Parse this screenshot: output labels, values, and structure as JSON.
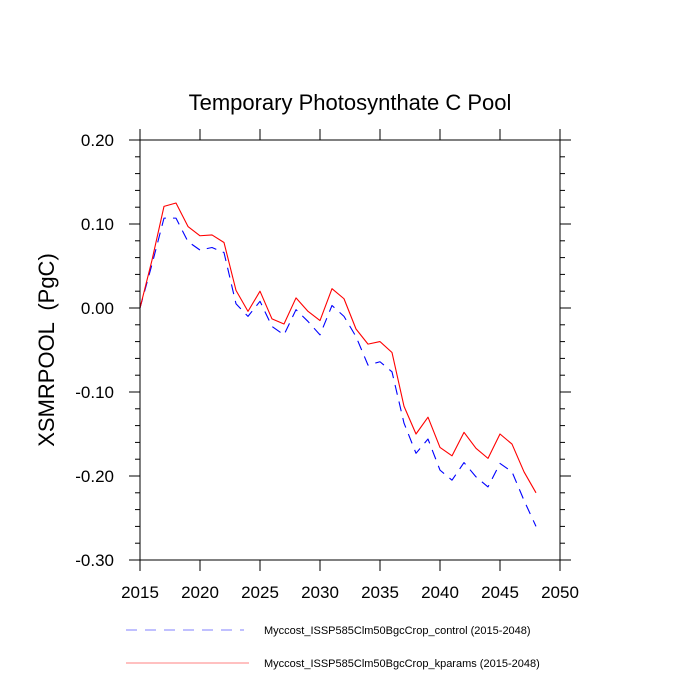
{
  "chart_data": {
    "type": "line",
    "title": "Temporary Photosynthate C Pool",
    "xlabel": "",
    "ylabel": "XSMRPOOL  (PgC)",
    "xlim": [
      2015,
      2050
    ],
    "ylim": [
      -0.3,
      0.2
    ],
    "xticks": [
      2015,
      2020,
      2025,
      2030,
      2035,
      2040,
      2045,
      2050
    ],
    "xtick_labels": [
      "2015",
      "2020",
      "2025",
      "2030",
      "2035",
      "2040",
      "2045",
      "2050"
    ],
    "yticks": [
      0.2,
      0.1,
      0.0,
      -0.1,
      -0.2,
      -0.3
    ],
    "ytick_labels": [
      "0.20",
      "0.10",
      "0.00",
      "-0.10",
      "-0.20",
      "-0.30"
    ],
    "y_minor_step": 0.02,
    "grid": false,
    "legend_position": "bottom",
    "x": [
      2015,
      2016,
      2017,
      2018,
      2019,
      2020,
      2021,
      2022,
      2023,
      2024,
      2025,
      2026,
      2027,
      2028,
      2029,
      2030,
      2031,
      2032,
      2033,
      2034,
      2035,
      2036,
      2037,
      2038,
      2039,
      2040,
      2041,
      2042,
      2043,
      2044,
      2045,
      2046,
      2047,
      2048
    ],
    "series": [
      {
        "name": "Myccost_ISSP585Clm50BgcCrop_control (2015-2048)",
        "color": "#0000ff",
        "style": "dashed",
        "values": [
          0.0,
          0.052,
          0.107,
          0.107,
          0.079,
          0.069,
          0.072,
          0.066,
          0.005,
          -0.01,
          0.008,
          -0.022,
          -0.032,
          -0.002,
          -0.016,
          -0.032,
          0.003,
          -0.01,
          -0.034,
          -0.068,
          -0.064,
          -0.076,
          -0.137,
          -0.173,
          -0.156,
          -0.193,
          -0.205,
          -0.184,
          -0.201,
          -0.213,
          -0.185,
          -0.195,
          -0.229,
          -0.26
        ]
      },
      {
        "name": "Myccost_ISSP585Clm50BgcCrop_kparams (2015-2048)",
        "color": "#ff0000",
        "style": "solid",
        "values": [
          0.0,
          0.057,
          0.121,
          0.125,
          0.097,
          0.086,
          0.087,
          0.078,
          0.021,
          -0.004,
          0.02,
          -0.013,
          -0.019,
          0.012,
          -0.004,
          -0.015,
          0.023,
          0.011,
          -0.025,
          -0.043,
          -0.04,
          -0.053,
          -0.117,
          -0.15,
          -0.13,
          -0.166,
          -0.176,
          -0.148,
          -0.167,
          -0.179,
          -0.15,
          -0.162,
          -0.195,
          -0.22
        ]
      }
    ]
  }
}
